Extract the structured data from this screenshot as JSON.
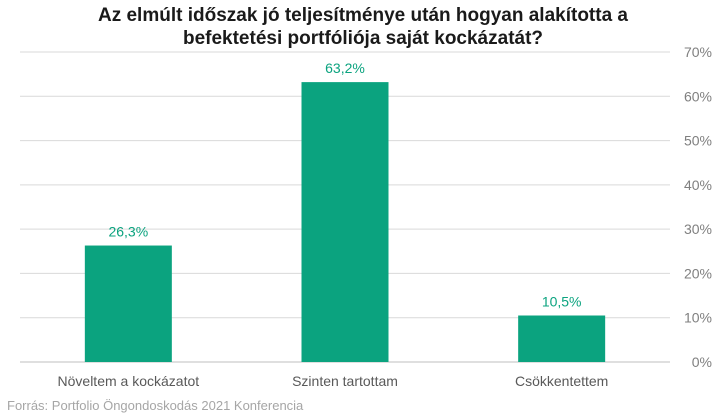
{
  "chart_data": {
    "type": "bar",
    "title_lines": [
      "Az elmúlt időszak jó teljesítménye után hogyan alakította a",
      "befektetési portfóliója saját kockázatát?"
    ],
    "categories": [
      "Növeltem a kockázatot",
      "Szinten tartottam",
      "Csökkentettem"
    ],
    "values": [
      26.3,
      63.2,
      10.5
    ],
    "value_labels": [
      "26,3%",
      "63,2%",
      "10,5%"
    ],
    "ylim": [
      0,
      70
    ],
    "y_ticks": [
      0,
      10,
      20,
      30,
      40,
      50,
      60,
      70
    ],
    "y_tick_labels": [
      "0%",
      "10%",
      "20%",
      "30%",
      "40%",
      "50%",
      "60%",
      "70%"
    ],
    "y_axis_position": "right",
    "grid": true,
    "legend": "none",
    "xlabel": "",
    "ylabel": ""
  },
  "source": "Forrás: Portfolio Öngondoskodás 2021 Konferencia",
  "colors": {
    "bar": "#0ba37f",
    "data_label": "#0ba37f",
    "grid": "#d9d9d9",
    "axis_line": "#bfbfbf"
  }
}
